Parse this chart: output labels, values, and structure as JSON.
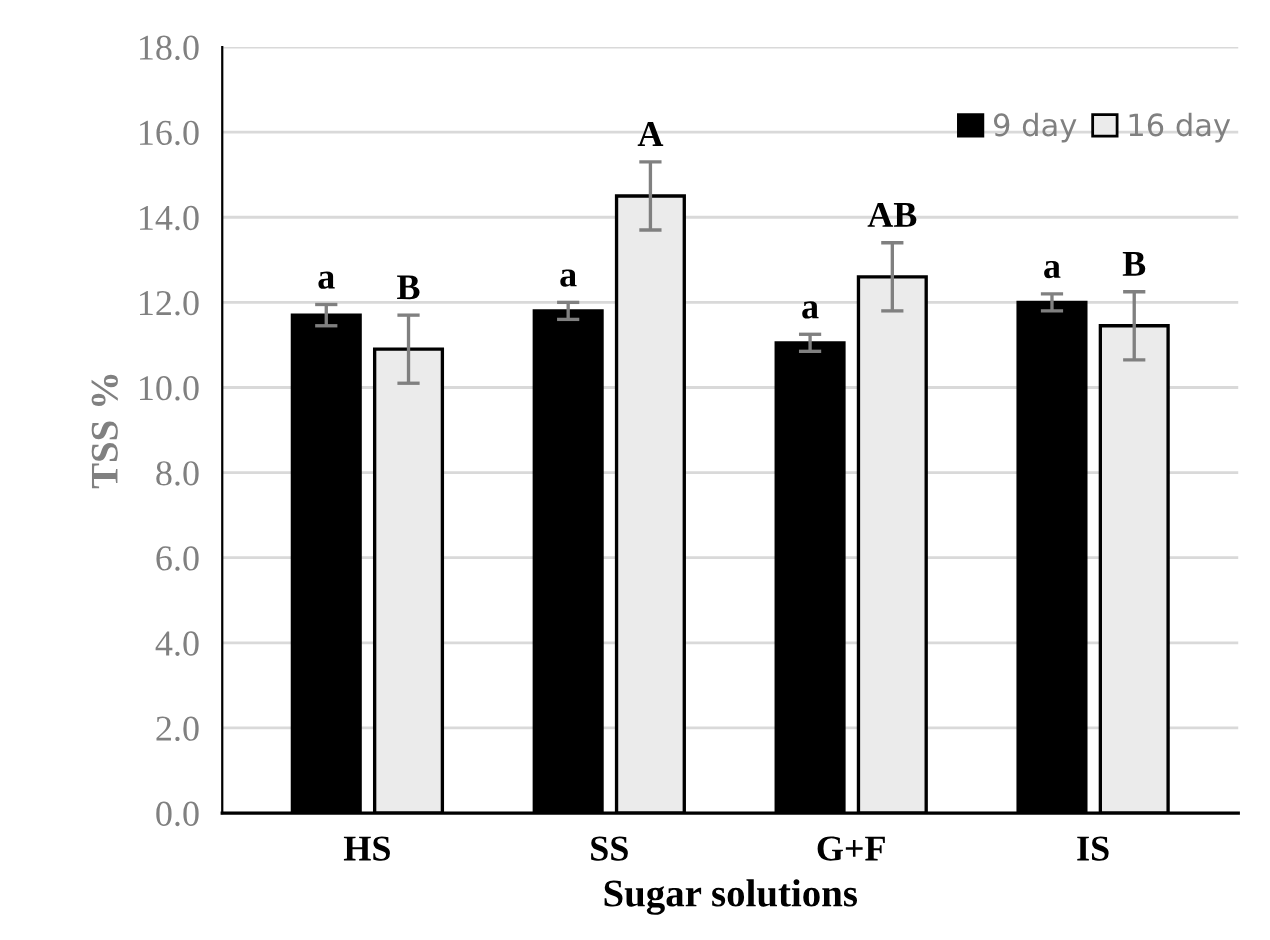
{
  "chart_data": {
    "type": "bar",
    "xlabel": "Sugar solutions",
    "ylabel": "TSS %",
    "categories": [
      "HS",
      "SS",
      "G+F",
      "IS"
    ],
    "series": [
      {
        "name": "9 day",
        "color": "#000000",
        "values": [
          11.7,
          11.8,
          11.05,
          12.0
        ],
        "errors": [
          0.25,
          0.2,
          0.2,
          0.2
        ],
        "value_labels": [
          "a",
          "a",
          "a",
          "a"
        ]
      },
      {
        "name": "16 day",
        "color": "#ebebeb",
        "values": [
          10.9,
          14.5,
          12.6,
          11.45
        ],
        "errors": [
          0.8,
          0.8,
          0.8,
          0.8
        ],
        "value_labels": [
          "B",
          "A",
          "AB",
          "B"
        ]
      }
    ],
    "ylim": [
      0,
      18
    ],
    "yticks": [
      {
        "value": 0,
        "label": "0.0"
      },
      {
        "value": 2,
        "label": "2.0"
      },
      {
        "value": 4,
        "label": "4.0"
      },
      {
        "value": 6,
        "label": "6.0"
      },
      {
        "value": 8,
        "label": "8.0"
      },
      {
        "value": 10,
        "label": "10.0"
      },
      {
        "value": 12,
        "label": "12.0"
      },
      {
        "value": 14,
        "label": "14.0"
      },
      {
        "value": 16,
        "label": "16.0"
      },
      {
        "value": 18,
        "label": "18.0"
      }
    ],
    "grid": "y",
    "legend": "top right"
  }
}
